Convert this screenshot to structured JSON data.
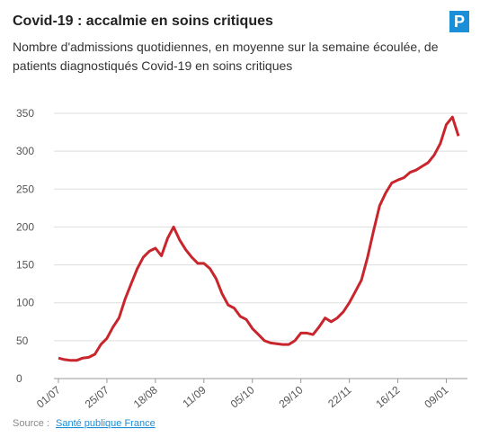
{
  "chart_data": {
    "type": "line",
    "title": "Covid-19 : accalmie en soins critiques",
    "subtitle": "Nombre d'admissions quotidiennes, en moyenne sur la semaine écoulée, de patients diagnostiqués Covid-19 en soins critiques",
    "logo": "P",
    "source_label": "Source :",
    "source_link": "Santé publique France",
    "categories": [
      "01/07",
      null,
      null,
      null,
      null,
      null,
      null,
      null,
      "25/07",
      null,
      null,
      null,
      null,
      null,
      null,
      null,
      "18/08",
      null,
      null,
      null,
      null,
      null,
      null,
      null,
      "11/09",
      null,
      null,
      null,
      null,
      null,
      null,
      null,
      "05/10",
      null,
      null,
      null,
      null,
      null,
      null,
      null,
      "29/10",
      null,
      null,
      null,
      null,
      null,
      null,
      null,
      "22/11",
      null,
      null,
      null,
      null,
      null,
      null,
      null,
      "16/12",
      null,
      null,
      null,
      null,
      null,
      null,
      null,
      "09/01",
      null,
      null
    ],
    "series": [
      {
        "color": "#c8252c",
        "values": [
          27,
          25,
          24,
          24,
          27,
          28,
          32,
          45,
          53,
          68,
          80,
          105,
          125,
          145,
          160,
          168,
          172,
          162,
          185,
          200,
          183,
          170,
          160,
          152,
          152,
          145,
          132,
          112,
          97,
          93,
          82,
          78,
          66,
          58,
          50,
          47,
          46,
          45,
          45,
          50,
          60,
          60,
          58,
          68,
          80,
          75,
          80,
          88,
          100,
          115,
          130,
          160,
          195,
          228,
          245,
          258,
          262,
          265,
          272,
          275,
          280,
          285,
          295,
          310,
          335,
          345,
          320
        ]
      }
    ],
    "ylim": [
      0,
      350
    ],
    "yticks": [
      0,
      50,
      100,
      150,
      200,
      250,
      300,
      350
    ],
    "grid": true
  }
}
